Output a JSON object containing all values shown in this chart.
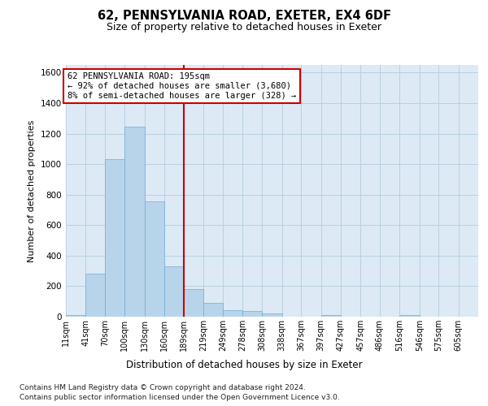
{
  "title": "62, PENNSYLVANIA ROAD, EXETER, EX4 6DF",
  "subtitle": "Size of property relative to detached houses in Exeter",
  "xlabel": "Distribution of detached houses by size in Exeter",
  "ylabel": "Number of detached properties",
  "bin_edges": [
    11,
    41,
    70,
    100,
    130,
    160,
    189,
    219,
    249,
    278,
    308,
    338,
    367,
    397,
    427,
    457,
    486,
    516,
    546,
    575,
    605
  ],
  "bin_labels": [
    "11sqm",
    "41sqm",
    "70sqm",
    "100sqm",
    "130sqm",
    "160sqm",
    "189sqm",
    "219sqm",
    "249sqm",
    "278sqm",
    "308sqm",
    "338sqm",
    "367sqm",
    "397sqm",
    "427sqm",
    "457sqm",
    "486sqm",
    "516sqm",
    "546sqm",
    "575sqm",
    "605sqm"
  ],
  "bar_values": [
    10,
    280,
    1035,
    1245,
    755,
    330,
    180,
    90,
    45,
    38,
    22,
    0,
    0,
    8,
    0,
    0,
    0,
    10,
    0,
    0,
    0
  ],
  "bar_color": "#b8d4ea",
  "bar_edge_color": "#6aaed6",
  "vline_x": 189,
  "vline_color": "#cc0000",
  "annotation_line1": "62 PENNSYLVANIA ROAD: 195sqm",
  "annotation_line2": "← 92% of detached houses are smaller (3,680)",
  "annotation_line3": "8% of semi-detached houses are larger (328) →",
  "annot_box_color": "#cc0000",
  "ylim_max": 1650,
  "yticks": [
    0,
    200,
    400,
    600,
    800,
    1000,
    1200,
    1400,
    1600
  ],
  "grid_color": "#b8cfe0",
  "bg_color": "#ddeaf5",
  "footnote_line1": "Contains HM Land Registry data © Crown copyright and database right 2024.",
  "footnote_line2": "Contains public sector information licensed under the Open Government Licence v3.0."
}
